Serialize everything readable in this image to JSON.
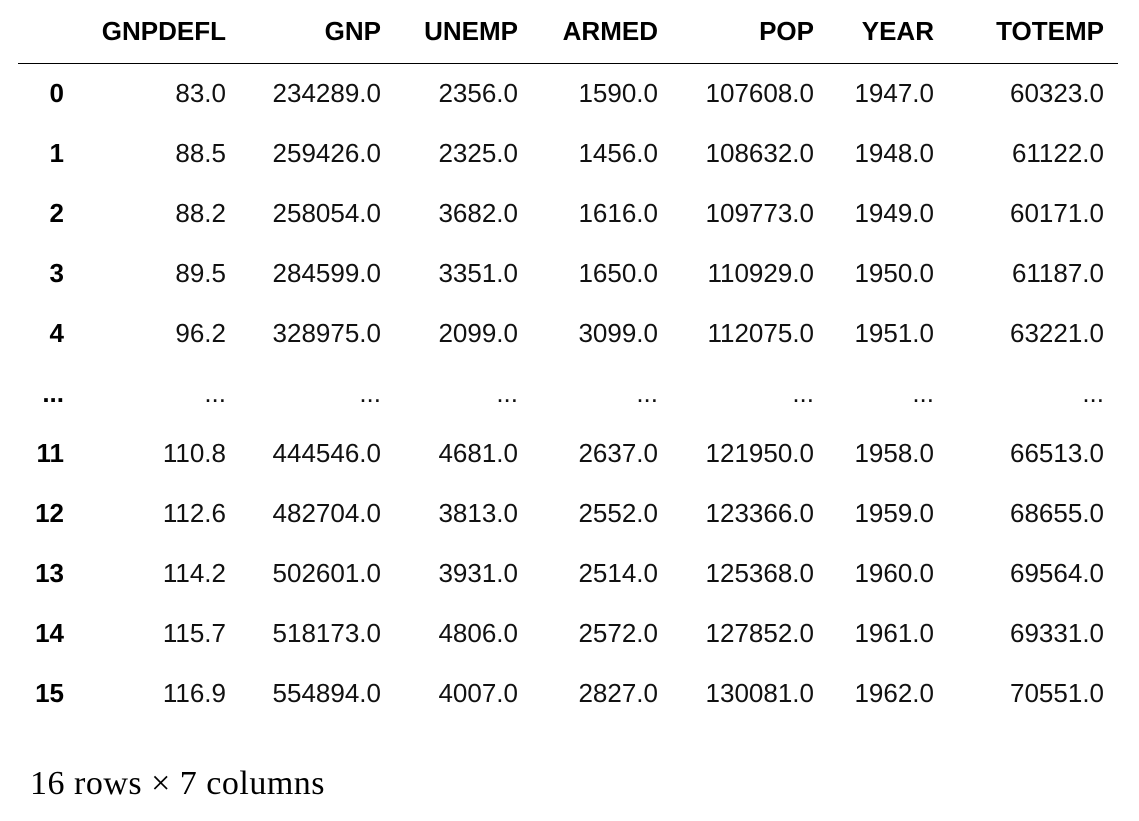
{
  "table": {
    "index_header": "",
    "columns": [
      "GNPDEFL",
      "GNP",
      "UNEMP",
      "ARMED",
      "POP",
      "YEAR",
      "TOTEMP"
    ],
    "rows": [
      {
        "index": "0",
        "values": [
          "83.0",
          "234289.0",
          "2356.0",
          "1590.0",
          "107608.0",
          "1947.0",
          "60323.0"
        ]
      },
      {
        "index": "1",
        "values": [
          "88.5",
          "259426.0",
          "2325.0",
          "1456.0",
          "108632.0",
          "1948.0",
          "61122.0"
        ]
      },
      {
        "index": "2",
        "values": [
          "88.2",
          "258054.0",
          "3682.0",
          "1616.0",
          "109773.0",
          "1949.0",
          "60171.0"
        ]
      },
      {
        "index": "3",
        "values": [
          "89.5",
          "284599.0",
          "3351.0",
          "1650.0",
          "110929.0",
          "1950.0",
          "61187.0"
        ]
      },
      {
        "index": "4",
        "values": [
          "96.2",
          "328975.0",
          "2099.0",
          "3099.0",
          "112075.0",
          "1951.0",
          "63221.0"
        ]
      },
      {
        "index": "...",
        "values": [
          "...",
          "...",
          "...",
          "...",
          "...",
          "...",
          "..."
        ]
      },
      {
        "index": "11",
        "values": [
          "110.8",
          "444546.0",
          "4681.0",
          "2637.0",
          "121950.0",
          "1958.0",
          "66513.0"
        ]
      },
      {
        "index": "12",
        "values": [
          "112.6",
          "482704.0",
          "3813.0",
          "2552.0",
          "123366.0",
          "1959.0",
          "68655.0"
        ]
      },
      {
        "index": "13",
        "values": [
          "114.2",
          "502601.0",
          "3931.0",
          "2514.0",
          "125368.0",
          "1960.0",
          "69564.0"
        ]
      },
      {
        "index": "14",
        "values": [
          "115.7",
          "518173.0",
          "4806.0",
          "2572.0",
          "127852.0",
          "1961.0",
          "69331.0"
        ]
      },
      {
        "index": "15",
        "values": [
          "116.9",
          "554894.0",
          "4007.0",
          "2827.0",
          "130081.0",
          "1962.0",
          "70551.0"
        ]
      }
    ]
  },
  "shape_note": "16 rows × 7 columns"
}
